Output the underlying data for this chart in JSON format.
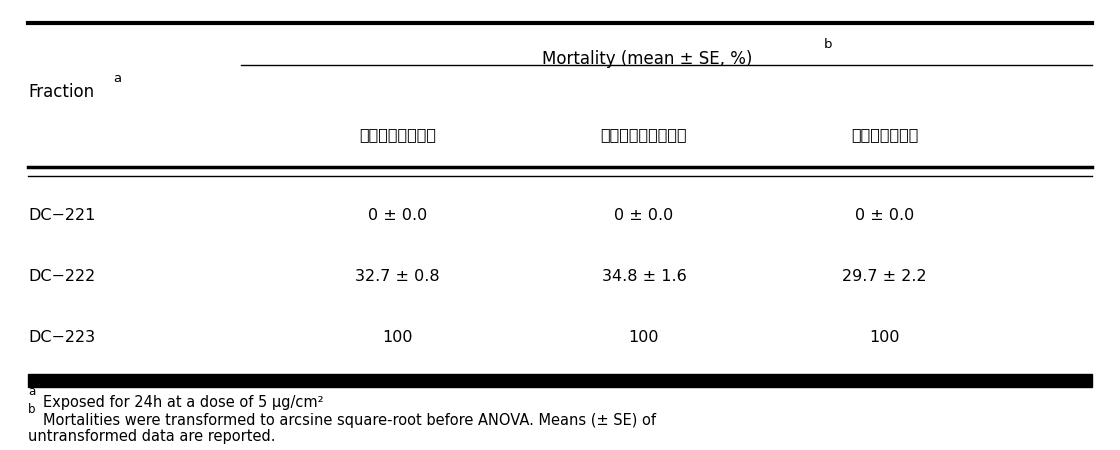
{
  "title": "Mortality (mean ± SE, %)",
  "title_superscript": "b",
  "col_header_1": "Fraction",
  "col_header_1_superscript": "a",
  "sub_headers": [
    "큰다리먹지진드기",
    "세로무니먹지진드기",
    "저장식품진드기"
  ],
  "rows": [
    {
      "fraction": "DC−221",
      "values": [
        "0 ± 0.0",
        "0 ± 0.0",
        "0 ± 0.0"
      ]
    },
    {
      "fraction": "DC−222",
      "values": [
        "32.7 ± 0.8",
        "34.8 ± 1.6",
        "29.7 ± 2.2"
      ]
    },
    {
      "fraction": "DC−223",
      "values": [
        "100",
        "100",
        "100"
      ]
    }
  ],
  "footnote_a": "Exposed for 24h at a dose of 5 μg/cm²",
  "footnote_b_line1": "Mortalities were transformed to arcsine square-root before ANOVA. Means (± SE) of",
  "footnote_b_line2": "untransformed data are reported.",
  "bg_color": "#ffffff",
  "text_color": "#000000",
  "font_size": 11.5,
  "footnote_font_size": 10.5
}
